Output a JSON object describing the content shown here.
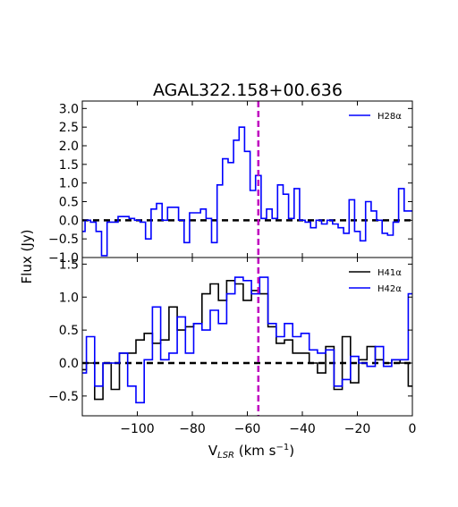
{
  "chart_data": [
    {
      "type": "line",
      "panel": "top",
      "title": "AGAL322.158+00.636",
      "xlim": [
        -120,
        0
      ],
      "ylim": [
        -1.0,
        3.2
      ],
      "yticks": [
        -1.0,
        -0.5,
        0.0,
        0.5,
        1.0,
        1.5,
        2.0,
        2.5,
        3.0
      ],
      "ytick_labels": [
        "−1.0",
        "−0.5",
        "0.0",
        "0.5",
        "1.0",
        "1.5",
        "2.0",
        "2.5",
        "3.0"
      ],
      "series": [
        {
          "name": "H28α",
          "color": "#0000ff",
          "step": "mid",
          "x": [
            -120,
            -118,
            -116,
            -114,
            -112,
            -110,
            -108,
            -106,
            -104,
            -102,
            -100,
            -98,
            -96,
            -94,
            -92,
            -90,
            -88,
            -86,
            -84,
            -82,
            -80,
            -78,
            -76,
            -74,
            -72,
            -70,
            -68,
            -66,
            -64,
            -62,
            -60,
            -58,
            -56,
            -54,
            -52,
            -50,
            -48,
            -46,
            -44,
            -42,
            -40,
            -38,
            -36,
            -34,
            -32,
            -30,
            -28,
            -26,
            -24,
            -22,
            -20,
            -18,
            -16,
            -14,
            -12,
            -10,
            -8,
            -6,
            -4,
            -2,
            0
          ],
          "y": [
            -0.3,
            0.0,
            -0.05,
            -0.3,
            -0.95,
            -0.05,
            -0.05,
            0.1,
            0.1,
            0.05,
            0.0,
            -0.05,
            -0.5,
            0.3,
            0.45,
            0.0,
            0.35,
            0.35,
            0.0,
            -0.6,
            0.2,
            0.2,
            0.3,
            0.05,
            -0.6,
            0.95,
            1.65,
            1.55,
            2.15,
            2.5,
            1.85,
            0.8,
            1.2,
            0.05,
            0.3,
            0.05,
            0.95,
            0.7,
            0.05,
            0.85,
            0.0,
            -0.05,
            -0.2,
            0.0,
            -0.1,
            0.0,
            -0.1,
            -0.2,
            -0.35,
            0.55,
            -0.3,
            -0.55,
            0.5,
            0.25,
            0.0,
            -0.35,
            -0.4,
            -0.05,
            0.85,
            0.25,
            0.25
          ]
        }
      ],
      "hline": 0.0,
      "vline": -56,
      "legend": "top-right"
    },
    {
      "type": "line",
      "panel": "bottom",
      "xlabel": "V_LSR (km s⁻¹)",
      "ylabel": "Flux (Jy)",
      "xlim": [
        -120,
        0
      ],
      "ylim": [
        -0.8,
        1.6
      ],
      "xticks": [
        -100,
        -80,
        -60,
        -40,
        -20,
        0
      ],
      "xtick_labels": [
        "−100",
        "−80",
        "−60",
        "−40",
        "−20",
        "0"
      ],
      "yticks": [
        -0.5,
        0.0,
        0.5,
        1.0,
        1.5
      ],
      "ytick_labels": [
        "−0.5",
        "0.0",
        "0.5",
        "1.0",
        "1.5"
      ],
      "series": [
        {
          "name": "H41α",
          "color": "#000000",
          "step": "mid",
          "x": [
            -120,
            -117,
            -114,
            -111,
            -108,
            -105,
            -102,
            -99,
            -96,
            -93,
            -90,
            -87,
            -84,
            -81,
            -78,
            -75,
            -72,
            -69,
            -66,
            -63,
            -60,
            -57,
            -54,
            -51,
            -48,
            -45,
            -42,
            -39,
            -36,
            -33,
            -30,
            -27,
            -24,
            -21,
            -18,
            -15,
            -12,
            -9,
            -6,
            -3,
            0
          ],
          "y": [
            -0.1,
            0.0,
            -0.55,
            0.0,
            -0.4,
            0.15,
            0.15,
            0.35,
            0.45,
            0.3,
            0.35,
            0.85,
            0.5,
            0.55,
            0.6,
            1.05,
            1.2,
            0.95,
            1.25,
            1.2,
            0.95,
            1.1,
            1.05,
            0.55,
            0.3,
            0.35,
            0.15,
            0.15,
            0.0,
            -0.15,
            0.25,
            -0.4,
            0.4,
            -0.3,
            0.05,
            0.25,
            0.05,
            0.0,
            0.05,
            0.0,
            -0.35
          ]
        },
        {
          "name": "H42α",
          "color": "#0000ff",
          "step": "mid",
          "x": [
            -120,
            -117,
            -114,
            -111,
            -108,
            -105,
            -102,
            -99,
            -96,
            -93,
            -90,
            -87,
            -84,
            -81,
            -78,
            -75,
            -72,
            -69,
            -66,
            -63,
            -60,
            -57,
            -54,
            -51,
            -48,
            -45,
            -42,
            -39,
            -36,
            -33,
            -30,
            -27,
            -24,
            -21,
            -18,
            -15,
            -12,
            -9,
            -6,
            -3,
            0
          ],
          "y": [
            -0.15,
            0.4,
            -0.35,
            0.0,
            0.0,
            0.15,
            -0.35,
            -0.6,
            0.05,
            0.85,
            0.05,
            0.15,
            0.7,
            0.15,
            0.6,
            0.5,
            0.8,
            0.6,
            1.05,
            1.3,
            1.25,
            1.05,
            1.3,
            0.6,
            0.4,
            0.6,
            0.4,
            0.45,
            0.2,
            0.15,
            0.2,
            -0.35,
            -0.25,
            0.1,
            0.0,
            -0.05,
            0.25,
            -0.05,
            0.05,
            0.05,
            1.05
          ]
        }
      ],
      "hline": 0.0,
      "vline": -56,
      "legend": "top-right"
    }
  ]
}
